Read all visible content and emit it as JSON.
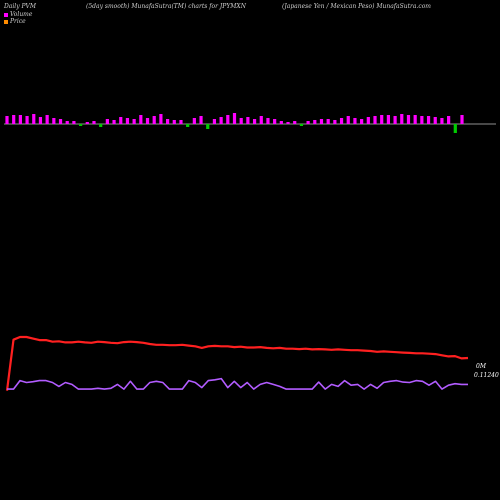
{
  "header": {
    "left": "Daily PVM",
    "center": "(5day smooth) MunafaSutra(TM) charts for JPYMXN",
    "right": "(Japanese  Yen  / Mexican  Peso) MunafaSutra.com"
  },
  "legend": {
    "volume_label": "Volume",
    "price_label": "Price",
    "volume_color": "#ff00ff",
    "price_color": "#ff8c00"
  },
  "labels": {
    "volume_right": "0M",
    "price_right": "0.11240"
  },
  "chart_data": {
    "type": "line",
    "title": "(5day smooth) MunafaSutra(TM) charts for JPYMXN",
    "volume_bars": {
      "up_color": "#ff00ff",
      "down_color": "#00cc00",
      "values": [
        8,
        9,
        9,
        8,
        10,
        7,
        9,
        6,
        5,
        3,
        3,
        -2,
        2,
        3,
        -3,
        5,
        4,
        7,
        6,
        5,
        9,
        6,
        8,
        10,
        5,
        4,
        4,
        -3,
        6,
        8,
        -5,
        5,
        7,
        9,
        11,
        6,
        7,
        5,
        8,
        6,
        5,
        3,
        2,
        3,
        -2,
        3,
        4,
        5,
        5,
        4,
        6,
        8,
        6,
        5,
        7,
        8,
        9,
        9,
        8,
        10,
        9,
        9,
        8,
        8,
        7,
        6,
        8,
        -9,
        9
      ]
    },
    "series": [
      {
        "name": "Price",
        "color": "#ff2020",
        "values": [
          0.1124,
          0.1255,
          0.1262,
          0.1262,
          0.1258,
          0.1254,
          0.1254,
          0.125,
          0.1251,
          0.1248,
          0.1248,
          0.125,
          0.1248,
          0.1247,
          0.125,
          0.1249,
          0.1247,
          0.1246,
          0.1249,
          0.125,
          0.1249,
          0.1247,
          0.1244,
          0.1242,
          0.1242,
          0.1241,
          0.1241,
          0.1242,
          0.124,
          0.1238,
          0.1234,
          0.1238,
          0.1239,
          0.1238,
          0.1238,
          0.1236,
          0.1237,
          0.1235,
          0.1235,
          0.1236,
          0.1234,
          0.1233,
          0.1234,
          0.1232,
          0.1232,
          0.1231,
          0.1232,
          0.123,
          0.1231,
          0.123,
          0.1229,
          0.123,
          0.1229,
          0.1228,
          0.1228,
          0.1227,
          0.1226,
          0.1224,
          0.1225,
          0.1224,
          0.1223,
          0.1222,
          0.1221,
          0.122,
          0.122,
          0.1219,
          0.1218,
          0.1215,
          0.1212,
          0.1213,
          0.1207,
          0.1208
        ]
      },
      {
        "name": "PVM",
        "color": "#b25cff",
        "values": [
          0.1128,
          0.1128,
          0.115,
          0.1145,
          0.1147,
          0.115,
          0.115,
          0.1145,
          0.1135,
          0.1145,
          0.114,
          0.1128,
          0.1128,
          0.1128,
          0.113,
          0.1128,
          0.113,
          0.114,
          0.1128,
          0.1148,
          0.1128,
          0.1128,
          0.1145,
          0.1148,
          0.1145,
          0.1128,
          0.1128,
          0.1128,
          0.115,
          0.1145,
          0.1132,
          0.115,
          0.1152,
          0.1155,
          0.1132,
          0.1148,
          0.1132,
          0.1145,
          0.1128,
          0.114,
          0.1145,
          0.114,
          0.1135,
          0.1128,
          0.1128,
          0.1128,
          0.1128,
          0.1128,
          0.1146,
          0.1128,
          0.114,
          0.1135,
          0.115,
          0.1138,
          0.114,
          0.1128,
          0.114,
          0.113,
          0.1145,
          0.1148,
          0.115,
          0.1146,
          0.1145,
          0.115,
          0.1148,
          0.1138,
          0.1148,
          0.1128,
          0.1138,
          0.1142,
          0.114,
          0.114
        ]
      }
    ],
    "price_axis_ylim": [
      0.11,
      0.128
    ]
  }
}
